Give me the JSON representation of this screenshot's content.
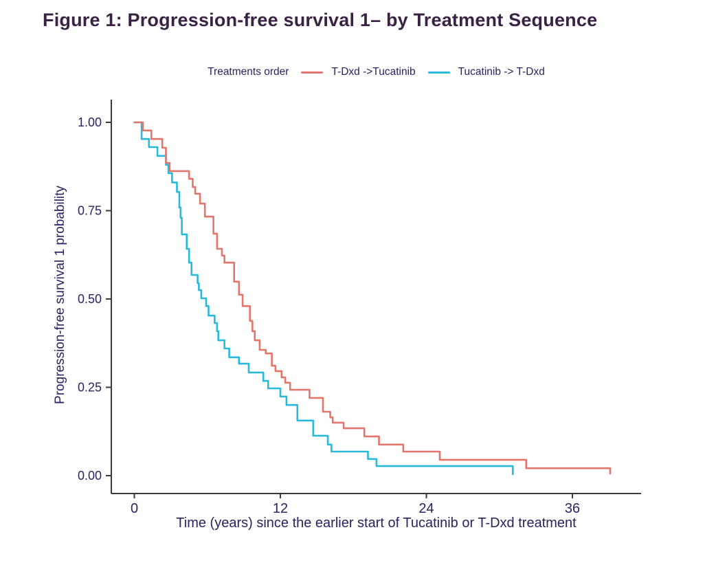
{
  "title": "Figure 1: Progression-free survival 1– by Treatment Sequence",
  "legend": {
    "title": "Treatments order",
    "items": [
      {
        "label": "T-Dxd ->Tucatinib",
        "color": "#e4756b"
      },
      {
        "label": "Tucatinib -> T-Dxd",
        "color": "#29b9dd"
      }
    ]
  },
  "axes": {
    "x": {
      "label": "Time (years) since the earlier start of Tucatinib or T-Dxd treatment",
      "tick_labels": [
        "0",
        "12",
        "24",
        "36"
      ],
      "tick_values": [
        0,
        12,
        24,
        36
      ]
    },
    "y": {
      "label": "Progression-free survival 1 probability",
      "tick_labels": [
        "0.00",
        "0.25",
        "0.50",
        "0.75",
        "1.00"
      ],
      "tick_values": [
        0,
        0.25,
        0.5,
        0.75,
        1.0
      ]
    }
  },
  "colors": {
    "title_text": "#3a2244",
    "axis_text": "#2b2163",
    "axis_line": "#3a3a3a",
    "background": "#ffffff",
    "series_tdxd_first": "#e4756b",
    "series_tucatinib_first": "#29b9dd"
  },
  "chart_data": {
    "type": "line",
    "subtype": "kaplan-meier-step",
    "title": "Figure 1: Progression-free survival 1– by Treatment Sequence",
    "xlabel": "Time (years) since the earlier start of Tucatinib or T-Dxd treatment",
    "ylabel": "Progression-free survival 1 probability",
    "legend_title": "Treatments order",
    "legend_position": "top",
    "grid": false,
    "xlim": [
      0,
      41.6
    ],
    "ylim": [
      0,
      1.0
    ],
    "x_ticks": [
      0,
      12,
      24,
      36
    ],
    "y_ticks": [
      0,
      0.25,
      0.5,
      0.75,
      1.0
    ],
    "series": [
      {
        "name": "Tucatinib -> T-Dxd",
        "color": "#29b9dd",
        "points": [
          [
            0,
            1.0
          ],
          [
            0.6,
            0.953
          ],
          [
            1.2,
            0.93
          ],
          [
            1.9,
            0.905
          ],
          [
            2.6,
            0.88
          ],
          [
            2.8,
            0.856
          ],
          [
            3.1,
            0.83
          ],
          [
            3.5,
            0.803
          ],
          [
            3.7,
            0.759
          ],
          [
            3.8,
            0.73
          ],
          [
            3.9,
            0.683
          ],
          [
            4.3,
            0.642
          ],
          [
            4.5,
            0.603
          ],
          [
            4.7,
            0.568
          ],
          [
            5.2,
            0.545
          ],
          [
            5.3,
            0.525
          ],
          [
            5.5,
            0.502
          ],
          [
            5.9,
            0.48
          ],
          [
            6.1,
            0.453
          ],
          [
            6.6,
            0.432
          ],
          [
            6.8,
            0.409
          ],
          [
            6.9,
            0.383
          ],
          [
            7.4,
            0.36
          ],
          [
            7.8,
            0.335
          ],
          [
            8.6,
            0.317
          ],
          [
            9.4,
            0.292
          ],
          [
            10.6,
            0.268
          ],
          [
            11.0,
            0.247
          ],
          [
            12.0,
            0.224
          ],
          [
            12.5,
            0.2
          ],
          [
            13.4,
            0.156
          ],
          [
            14.7,
            0.113
          ],
          [
            15.9,
            0.088
          ],
          [
            16.2,
            0.068
          ],
          [
            19.2,
            0.047
          ],
          [
            19.9,
            0.027
          ],
          [
            31.1,
            0.004
          ]
        ]
      },
      {
        "name": "T-Dxd ->Tucatinib",
        "color": "#e4756b",
        "points": [
          [
            0,
            1.0
          ],
          [
            0.7,
            0.977
          ],
          [
            1.4,
            0.953
          ],
          [
            2.3,
            0.928
          ],
          [
            2.6,
            0.885
          ],
          [
            2.9,
            0.862
          ],
          [
            4.5,
            0.84
          ],
          [
            4.8,
            0.817
          ],
          [
            5.0,
            0.798
          ],
          [
            5.4,
            0.77
          ],
          [
            5.8,
            0.733
          ],
          [
            6.5,
            0.685
          ],
          [
            6.8,
            0.642
          ],
          [
            7.2,
            0.623
          ],
          [
            7.4,
            0.603
          ],
          [
            8.2,
            0.549
          ],
          [
            8.6,
            0.512
          ],
          [
            8.9,
            0.48
          ],
          [
            9.5,
            0.438
          ],
          [
            9.7,
            0.409
          ],
          [
            9.9,
            0.383
          ],
          [
            10.3,
            0.356
          ],
          [
            10.8,
            0.346
          ],
          [
            11.3,
            0.311
          ],
          [
            11.6,
            0.296
          ],
          [
            12.1,
            0.278
          ],
          [
            12.4,
            0.263
          ],
          [
            12.8,
            0.243
          ],
          [
            14.4,
            0.22
          ],
          [
            15.5,
            0.181
          ],
          [
            16.1,
            0.165
          ],
          [
            16.3,
            0.15
          ],
          [
            17.2,
            0.134
          ],
          [
            18.9,
            0.111
          ],
          [
            20.1,
            0.088
          ],
          [
            22.1,
            0.068
          ],
          [
            25.1,
            0.045
          ],
          [
            32.2,
            0.021
          ],
          [
            39.1,
            0.006
          ]
        ]
      }
    ]
  }
}
